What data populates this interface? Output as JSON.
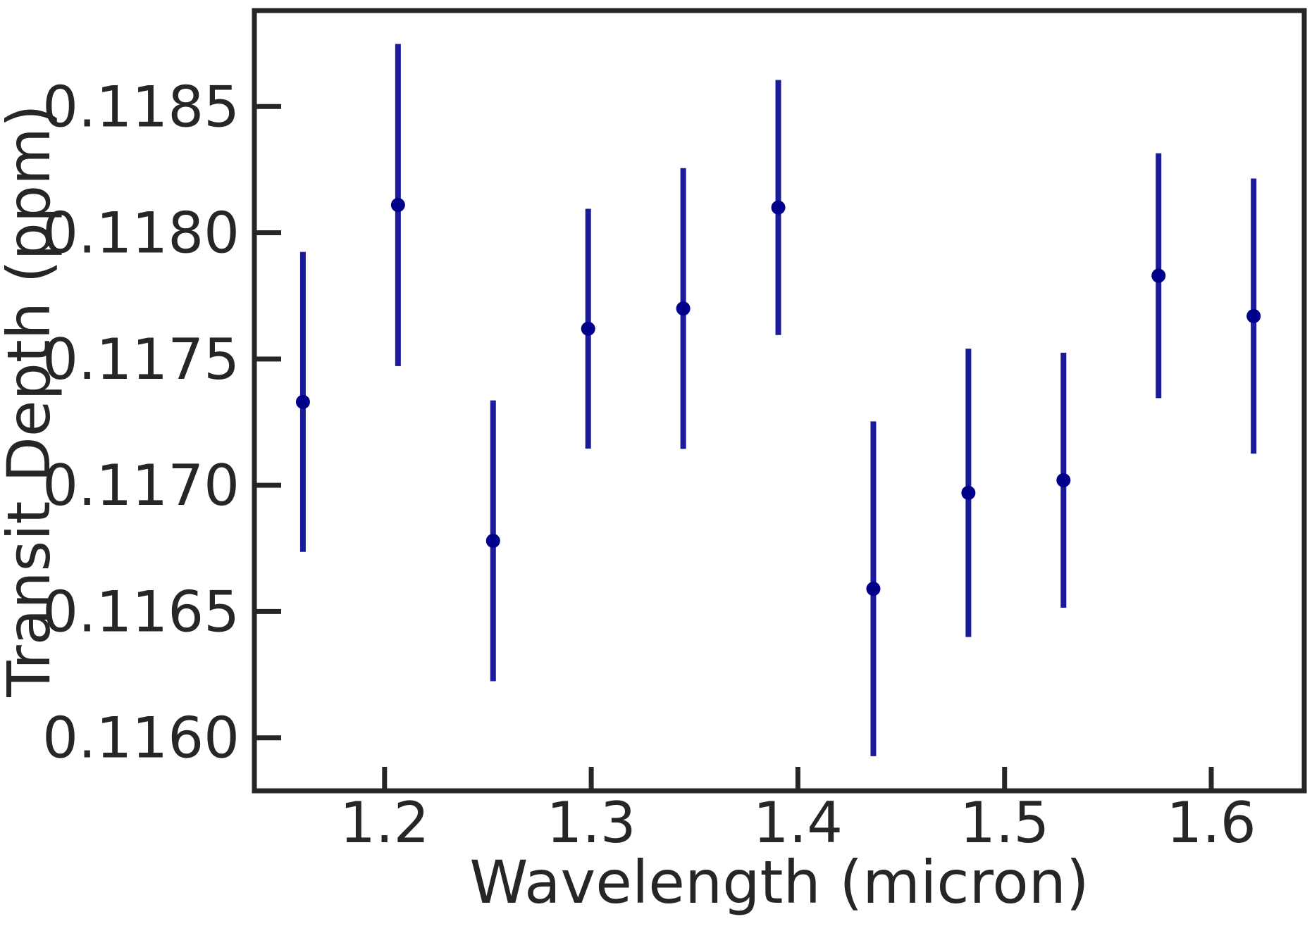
{
  "chart_data": {
    "type": "scatter",
    "title": "",
    "xlabel": "Wavelength (micron)",
    "ylabel": "Transit Depth (ppm)",
    "xlim": [
      1.137,
      1.645
    ],
    "ylim": [
      0.11579,
      0.11888
    ],
    "xticks": [
      1.2,
      1.3,
      1.4,
      1.5,
      1.6
    ],
    "xtick_labels": [
      "1.2",
      "1.3",
      "1.4",
      "1.5",
      "1.6"
    ],
    "yticks": [
      0.116,
      0.1165,
      0.117,
      0.1175,
      0.118,
      0.1185
    ],
    "ytick_labels": [
      "0.1160",
      "0.1165",
      "0.1170",
      "0.1175",
      "0.1180",
      "0.1185"
    ],
    "grid": false,
    "legend": "none",
    "series": [
      {
        "color": "#00008b",
        "errorbar_color": "#1a1a9a",
        "x": [
          1.1605,
          1.2065,
          1.2525,
          1.2985,
          1.3445,
          1.3905,
          1.4365,
          1.4825,
          1.5285,
          1.5745,
          1.6205
        ],
        "y": [
          0.11733,
          0.11811,
          0.11678,
          0.11762,
          0.1177,
          0.1181,
          0.11659,
          0.11697,
          0.11702,
          0.11783,
          0.11767
        ],
        "yerr": [
          0.000594,
          0.000638,
          0.000556,
          0.000475,
          0.000556,
          0.000505,
          0.000663,
          0.000571,
          0.000505,
          0.000485,
          0.000545
        ]
      }
    ]
  }
}
